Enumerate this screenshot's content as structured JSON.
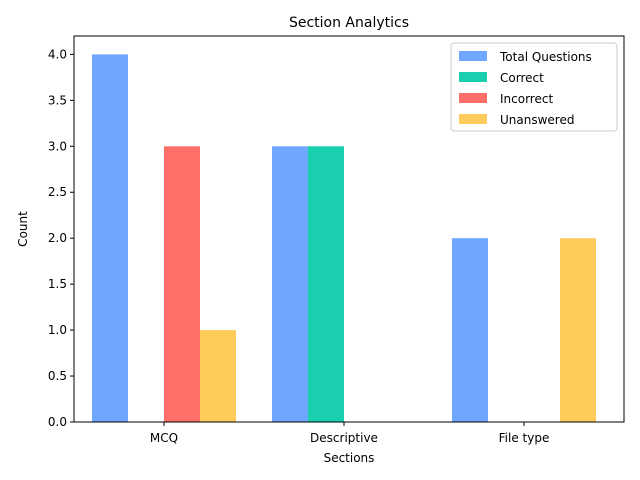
{
  "chart_data": {
    "type": "bar",
    "title": "Section Analytics",
    "xlabel": "Sections",
    "ylabel": "Count",
    "categories": [
      "MCQ",
      "Descriptive",
      "File type"
    ],
    "series": [
      {
        "name": "Total Questions",
        "values": [
          4,
          3,
          2
        ],
        "color": "#6fa6ff"
      },
      {
        "name": "Correct",
        "values": [
          0,
          3,
          0
        ],
        "color": "#19cfae"
      },
      {
        "name": "Incorrect",
        "values": [
          3,
          0,
          0
        ],
        "color": "#ff6f69"
      },
      {
        "name": "Unanswered",
        "values": [
          1,
          0,
          2
        ],
        "color": "#ffcc5c"
      }
    ],
    "ylim": [
      0,
      4.2
    ],
    "yticks": [
      "0.0",
      "0.5",
      "1.0",
      "1.5",
      "2.0",
      "2.5",
      "3.0",
      "3.5",
      "4.0"
    ],
    "grid": false,
    "legend_position": "top-right"
  }
}
